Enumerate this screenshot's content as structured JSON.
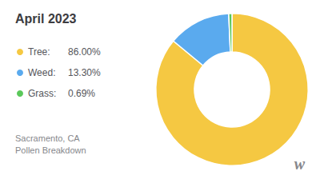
{
  "chart_data": {
    "type": "pie",
    "title": "April 2023",
    "categories": [
      "Tree:",
      "Weed:",
      "Grass:"
    ],
    "values": [
      86.0,
      13.3,
      0.69
    ],
    "value_labels": [
      "86.00%",
      "13.30%",
      "0.69%"
    ],
    "colors": [
      "#f5c842",
      "#5aaaee",
      "#5bc85a"
    ],
    "legend": "left",
    "annotations": [
      "Sacramento, CA\nPollen Breakdown",
      "w"
    ]
  }
}
